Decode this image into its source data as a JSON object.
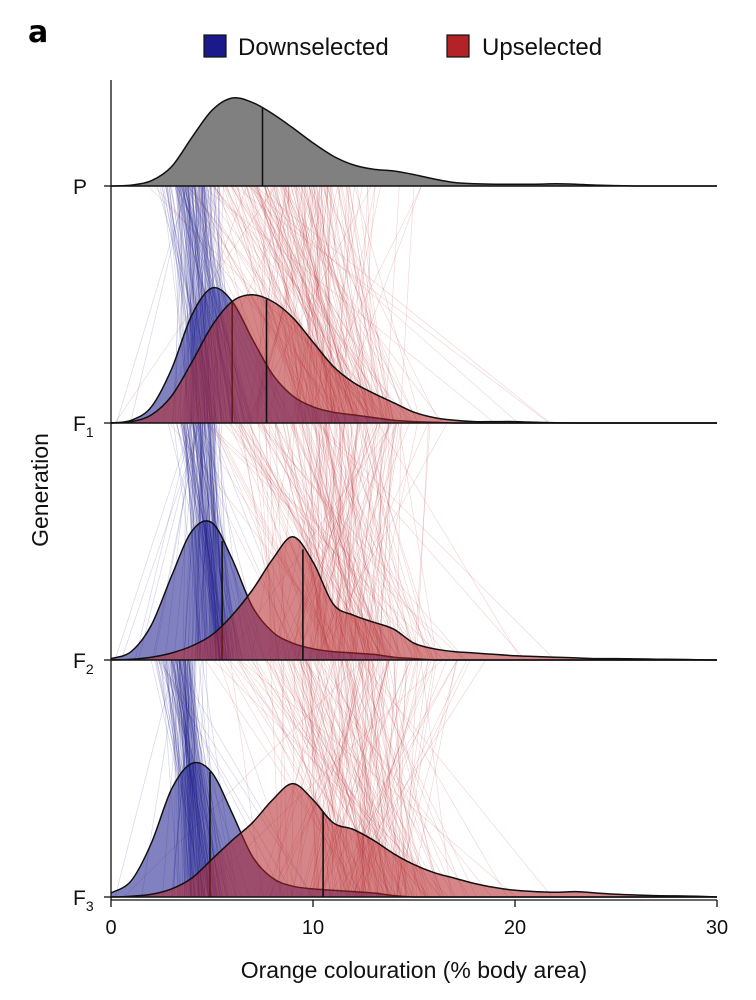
{
  "panel_label": "a",
  "colors": {
    "downselected": "#1a1a8c",
    "upselected": "#b22226",
    "parental": "#808080",
    "outline": "#111111"
  },
  "chart_data": {
    "type": "ridgeline-density",
    "xlabel": "Orange colouration (% body area)",
    "ylabel": "Generation",
    "xlim": [
      0,
      30
    ],
    "xticks": [
      0,
      10,
      20,
      30
    ],
    "grid": false,
    "legend": {
      "placement": "top",
      "entries": [
        {
          "name": "Downselected",
          "color": "#1a1a8c"
        },
        {
          "name": "Upselected",
          "color": "#b22226"
        }
      ]
    },
    "rows": [
      {
        "label": "P",
        "sub": "",
        "series": [
          {
            "group": "parental",
            "median": 7.5,
            "x": [
              0,
              1,
              2,
              3,
              4,
              5,
              6,
              7,
              8,
              9,
              10,
              11,
              12,
              13,
              14,
              15,
              16,
              17,
              18,
              19,
              20,
              21,
              22,
              23,
              24,
              25,
              26
            ],
            "density": [
              0.0,
              0.01,
              0.06,
              0.22,
              0.55,
              0.86,
              1.0,
              0.95,
              0.82,
              0.66,
              0.49,
              0.34,
              0.24,
              0.19,
              0.17,
              0.13,
              0.08,
              0.04,
              0.025,
              0.02,
              0.02,
              0.02,
              0.025,
              0.02,
              0.01,
              0.005,
              0.0
            ]
          }
        ]
      },
      {
        "label": "F",
        "sub": "1",
        "series": [
          {
            "group": "downselected",
            "median": 6.0,
            "x": [
              0,
              1,
              2,
              3,
              4,
              5,
              6,
              7,
              8,
              9,
              10,
              11,
              12,
              13,
              14,
              15,
              16,
              17
            ],
            "density": [
              0.0,
              0.02,
              0.12,
              0.4,
              0.8,
              1.0,
              0.9,
              0.62,
              0.36,
              0.2,
              0.12,
              0.08,
              0.06,
              0.04,
              0.02,
              0.01,
              0.005,
              0.0
            ]
          },
          {
            "group": "upselected",
            "median": 7.7,
            "x": [
              0,
              1,
              2,
              3,
              4,
              5,
              6,
              7,
              8,
              9,
              10,
              11,
              12,
              13,
              14,
              15,
              16,
              17,
              18,
              19,
              20,
              21,
              22,
              23
            ],
            "density": [
              0.0,
              0.01,
              0.06,
              0.2,
              0.45,
              0.72,
              0.9,
              0.95,
              0.9,
              0.78,
              0.6,
              0.42,
              0.3,
              0.22,
              0.15,
              0.08,
              0.04,
              0.02,
              0.01,
              0.01,
              0.01,
              0.005,
              0.002,
              0.0
            ]
          }
        ]
      },
      {
        "label": "F",
        "sub": "2",
        "series": [
          {
            "group": "downselected",
            "median": 5.5,
            "x": [
              0,
              1,
              2,
              3,
              4,
              5,
              6,
              7,
              8,
              9,
              10,
              11,
              12,
              13,
              14,
              15,
              16
            ],
            "density": [
              0.01,
              0.06,
              0.25,
              0.6,
              0.92,
              0.98,
              0.72,
              0.38,
              0.2,
              0.12,
              0.08,
              0.06,
              0.05,
              0.04,
              0.02,
              0.01,
              0.0
            ]
          },
          {
            "group": "upselected",
            "median": 9.5,
            "x": [
              0,
              1,
              2,
              3,
              4,
              5,
              6,
              7,
              8,
              9,
              10,
              11,
              12,
              13,
              14,
              15,
              16,
              17,
              18,
              19,
              20,
              21,
              22,
              23,
              24,
              25,
              26,
              27,
              28,
              29,
              30
            ],
            "density": [
              0.0,
              0.005,
              0.02,
              0.05,
              0.1,
              0.18,
              0.32,
              0.5,
              0.72,
              0.88,
              0.7,
              0.4,
              0.32,
              0.27,
              0.22,
              0.12,
              0.08,
              0.06,
              0.05,
              0.04,
              0.03,
              0.025,
              0.02,
              0.015,
              0.01,
              0.01,
              0.008,
              0.006,
              0.004,
              0.002,
              0.0
            ]
          }
        ]
      },
      {
        "label": "F",
        "sub": "3",
        "series": [
          {
            "group": "downselected",
            "median": 4.9,
            "x": [
              0,
              1,
              2,
              3,
              4,
              5,
              6,
              7,
              8,
              9,
              10,
              11,
              12,
              13,
              14,
              15
            ],
            "density": [
              0.03,
              0.12,
              0.4,
              0.8,
              0.99,
              0.92,
              0.62,
              0.3,
              0.14,
              0.08,
              0.06,
              0.05,
              0.04,
              0.03,
              0.01,
              0.0
            ]
          },
          {
            "group": "upselected",
            "median": 10.5,
            "x": [
              0,
              1,
              2,
              3,
              4,
              5,
              6,
              7,
              8,
              9,
              10,
              11,
              12,
              13,
              14,
              15,
              16,
              17,
              18,
              19,
              20,
              21,
              22,
              23,
              24,
              25,
              26,
              27,
              28,
              29,
              30
            ],
            "density": [
              0.0,
              0.005,
              0.02,
              0.06,
              0.14,
              0.28,
              0.42,
              0.55,
              0.72,
              0.84,
              0.72,
              0.55,
              0.5,
              0.42,
              0.32,
              0.24,
              0.18,
              0.14,
              0.1,
              0.07,
              0.05,
              0.04,
              0.035,
              0.04,
              0.03,
              0.02,
              0.015,
              0.01,
              0.008,
              0.005,
              0.0
            ]
          }
        ]
      }
    ]
  }
}
